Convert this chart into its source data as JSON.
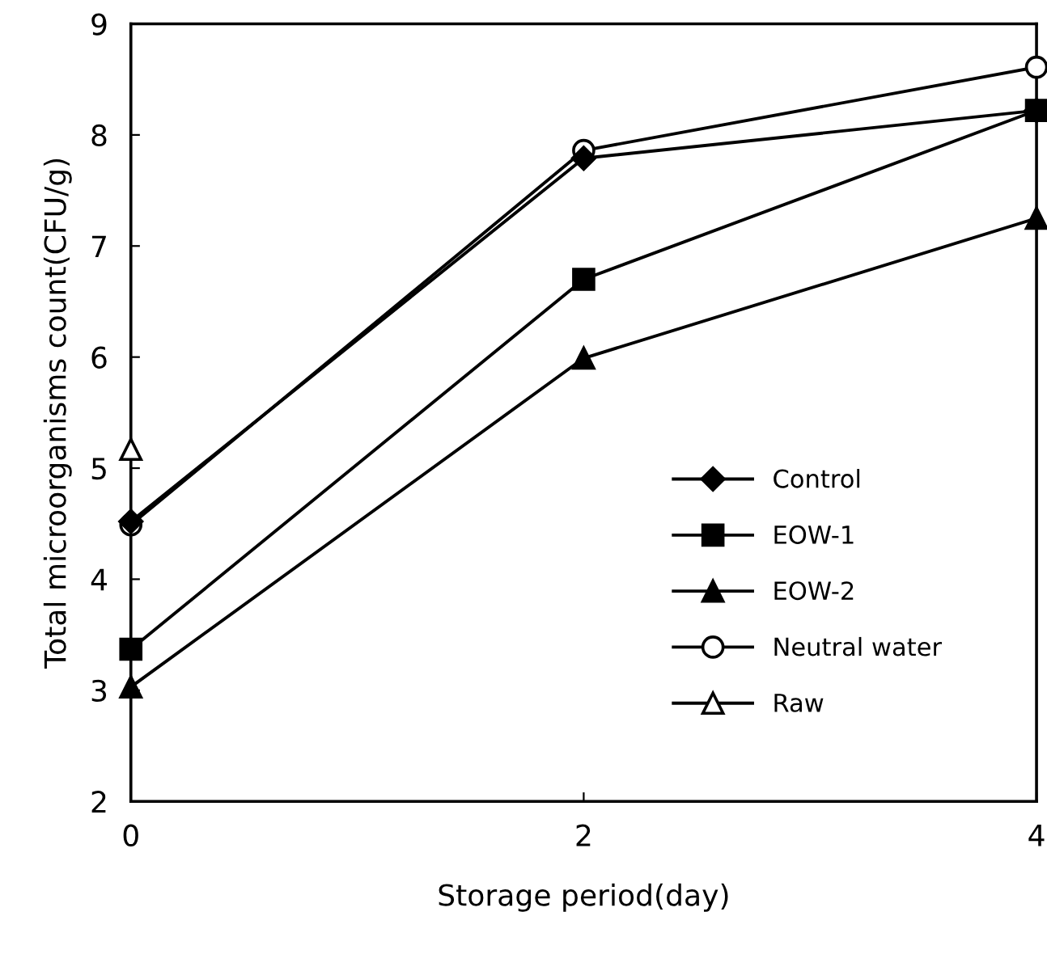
{
  "chart_data": {
    "type": "line",
    "xlabel": "Storage period(day)",
    "ylabel": "Total microorganisms count(CFU/g)",
    "x": [
      0,
      2,
      4
    ],
    "xlim": [
      0,
      4
    ],
    "xticks": [
      0,
      2,
      4
    ],
    "ylim": [
      2,
      9
    ],
    "yticks": [
      2,
      3,
      4,
      5,
      6,
      7,
      8,
      9
    ],
    "grid": false,
    "legend": "bottom right",
    "line_style": "solid",
    "series": [
      {
        "name": "Control",
        "color": "#000000",
        "marker": "diamond",
        "values": [
          4.52,
          7.79,
          8.22
        ]
      },
      {
        "name": "EOW-1",
        "color": "#000000",
        "marker": "square",
        "values": [
          3.37,
          6.7,
          8.22
        ]
      },
      {
        "name": "EOW-2",
        "color": "#000000",
        "marker": "triangle",
        "values": [
          3.03,
          5.99,
          7.25
        ]
      },
      {
        "name": "Neutral water",
        "color": "#ffffff",
        "marker": "circle",
        "values": [
          4.49,
          7.86,
          8.61
        ]
      },
      {
        "name": "Raw",
        "color": "#ffffff",
        "marker": "triangle",
        "values": [
          5.17,
          null,
          null
        ]
      }
    ]
  }
}
